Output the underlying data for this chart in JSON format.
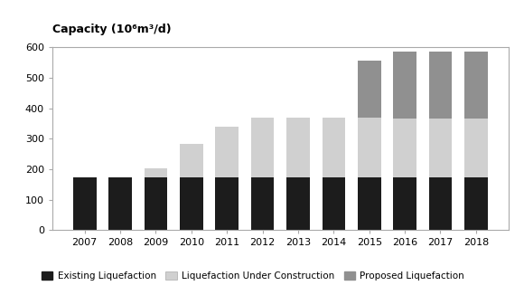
{
  "years": [
    "2007",
    "2008",
    "2009",
    "2010",
    "2011",
    "2012",
    "2013",
    "2014",
    "2015",
    "2016",
    "2017",
    "2018"
  ],
  "existing": [
    172,
    172,
    172,
    172,
    172,
    172,
    172,
    172,
    172,
    172,
    172,
    172
  ],
  "under_construction": [
    0,
    0,
    30,
    112,
    168,
    198,
    198,
    198,
    198,
    193,
    193,
    193
  ],
  "proposed": [
    0,
    0,
    0,
    0,
    0,
    0,
    0,
    0,
    185,
    220,
    220,
    220
  ],
  "colors": {
    "existing": "#1c1c1c",
    "under_construction": "#d0d0d0",
    "proposed": "#909090"
  },
  "ylabel": "Capacity (10⁶m³/d)",
  "ylim": [
    0,
    600
  ],
  "yticks": [
    0,
    100,
    200,
    300,
    400,
    500,
    600
  ],
  "legend_labels": [
    "Existing Liquefaction",
    "Liquefaction Under Construction",
    "Proposed Liquefaction"
  ],
  "background_color": "#ffffff",
  "plot_bg_color": "#ffffff",
  "bar_width": 0.65,
  "title_fontsize": 9,
  "tick_fontsize": 8,
  "legend_fontsize": 7.5
}
